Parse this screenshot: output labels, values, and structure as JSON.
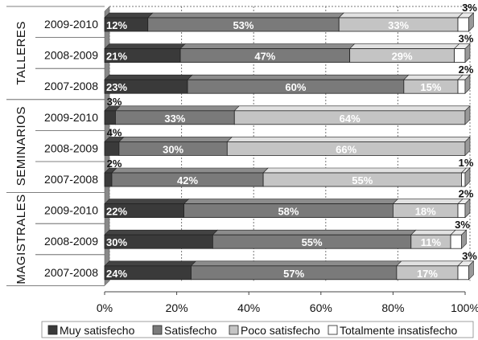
{
  "chart_data": {
    "type": "bar",
    "orientation": "horizontal",
    "stacked": "percent",
    "three_d": true,
    "groups": [
      {
        "name": "TALLERES",
        "categories": [
          "2009-2010",
          "2008-2009",
          "2007-2008"
        ]
      },
      {
        "name": "SEMINARIOS",
        "categories": [
          "2009-2010",
          "2008-2009",
          "2007-2008"
        ]
      },
      {
        "name": "MAGISTRALES",
        "categories": [
          "2009-2010",
          "2008-2009",
          "2007-2008"
        ]
      }
    ],
    "series": [
      {
        "name": "Muy satisfecho",
        "color": "#3a3a3a",
        "label_color": "#ffffff",
        "values": [
          12,
          21,
          23,
          3,
          4,
          2,
          22,
          30,
          24
        ]
      },
      {
        "name": "Satisfecho",
        "color": "#7a7a7a",
        "label_color": "#ffffff",
        "values": [
          53,
          47,
          60,
          33,
          30,
          42,
          58,
          55,
          57
        ]
      },
      {
        "name": "Poco satisfecho",
        "color": "#c4c4c4",
        "label_color": "#ffffff",
        "values": [
          33,
          29,
          15,
          64,
          66,
          55,
          18,
          11,
          17
        ]
      },
      {
        "name": "Totalmente insatisfecho",
        "color": "#ffffff",
        "label_color": "#111111",
        "values": [
          3,
          3,
          2,
          0,
          0,
          1,
          2,
          3,
          3
        ]
      }
    ],
    "data_labels": [
      [
        "12%",
        "53%",
        "33%",
        "3%"
      ],
      [
        "21%",
        "47%",
        "29%",
        "3%"
      ],
      [
        "23%",
        "60%",
        "15%",
        "2%"
      ],
      [
        "3%",
        "33%",
        "64%",
        ""
      ],
      [
        "4%",
        "30%",
        "66%",
        ""
      ],
      [
        "2%",
        "42%",
        "55%",
        "1%"
      ],
      [
        "22%",
        "58%",
        "18%",
        "2%"
      ],
      [
        "30%",
        "55%",
        "11%",
        "3%"
      ],
      [
        "24%",
        "57%",
        "17%",
        "3%"
      ]
    ],
    "xaxis": {
      "ticks": [
        "0%",
        "20%",
        "40%",
        "60%",
        "80%",
        "100%"
      ],
      "range": [
        0,
        100
      ]
    },
    "grid": "dotted-vertical-at-ticks",
    "legend_position": "bottom"
  }
}
